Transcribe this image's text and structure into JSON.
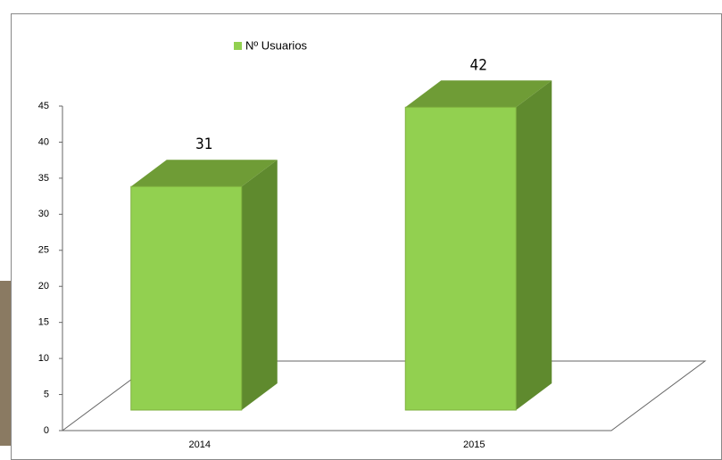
{
  "chart_data": {
    "type": "bar3d",
    "legend": "Nº Usuarios",
    "categories": [
      "2014",
      "2015"
    ],
    "values": [
      31,
      42
    ],
    "color": "#92d050",
    "ylim": [
      0,
      45
    ],
    "yticks": [
      0,
      5,
      10,
      15,
      20,
      25,
      30,
      35,
      40,
      45
    ]
  }
}
